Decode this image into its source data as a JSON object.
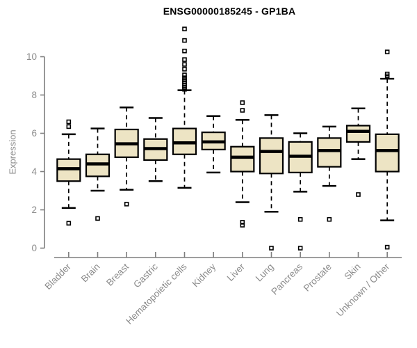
{
  "chart_data": {
    "type": "boxplot",
    "title": "ENSG00000185245 - GP1BA",
    "ylabel": "Expression",
    "xlabel": "",
    "ylim": [
      0,
      10
    ],
    "yticks": [
      0,
      2,
      4,
      6,
      8,
      10
    ],
    "grid": false,
    "legend_position": "none",
    "colors": {
      "box_fill": "#ede4c4",
      "box_border": "#000000",
      "median": "#000000",
      "whisker": "#000000",
      "outlier": "#000000",
      "axis_line": "#7f7f7f",
      "axis_text": "#8b8b8b",
      "title_text": "#000000",
      "background": "#ffffff"
    },
    "categories": [
      "Bladder",
      "Brain",
      "Breast",
      "Gastric",
      "Hematopoietic cells",
      "Kidney",
      "Liver",
      "Lung",
      "Pancreas",
      "Prostate",
      "Skin",
      "Unknown / Other"
    ],
    "series": [
      {
        "category": "Bladder",
        "whisker_low": 2.1,
        "q1": 3.5,
        "median": 4.15,
        "q3": 4.65,
        "whisker_high": 5.95,
        "outliers": [
          6.6,
          6.35,
          1.3
        ]
      },
      {
        "category": "Brain",
        "whisker_low": 3.0,
        "q1": 3.75,
        "median": 4.4,
        "q3": 4.9,
        "whisker_high": 6.25,
        "outliers": [
          1.55
        ]
      },
      {
        "category": "Breast",
        "whisker_low": 3.05,
        "q1": 4.75,
        "median": 5.45,
        "q3": 6.2,
        "whisker_high": 7.35,
        "outliers": [
          2.3
        ]
      },
      {
        "category": "Gastric",
        "whisker_low": 3.5,
        "q1": 4.6,
        "median": 5.2,
        "q3": 5.7,
        "whisker_high": 6.8,
        "outliers": []
      },
      {
        "category": "Hematopoietic cells",
        "whisker_low": 3.15,
        "q1": 4.9,
        "median": 5.5,
        "q3": 6.25,
        "whisker_high": 8.25,
        "outliers": [
          11.45,
          10.85,
          10.3,
          9.85,
          9.6,
          9.35,
          9.05,
          8.9,
          8.8,
          8.7,
          8.6,
          8.5,
          8.4,
          8.3
        ]
      },
      {
        "category": "Kidney",
        "whisker_low": 3.95,
        "q1": 5.15,
        "median": 5.55,
        "q3": 6.05,
        "whisker_high": 6.9,
        "outliers": []
      },
      {
        "category": "Liver",
        "whisker_low": 2.4,
        "q1": 4.0,
        "median": 4.75,
        "q3": 5.3,
        "whisker_high": 6.7,
        "outliers": [
          7.6,
          7.2,
          1.35,
          1.2
        ]
      },
      {
        "category": "Lung",
        "whisker_low": 1.9,
        "q1": 3.9,
        "median": 5.05,
        "q3": 5.75,
        "whisker_high": 6.95,
        "outliers": [
          0.0
        ]
      },
      {
        "category": "Pancreas",
        "whisker_low": 2.95,
        "q1": 3.95,
        "median": 4.8,
        "q3": 5.55,
        "whisker_high": 6.0,
        "outliers": [
          1.5,
          0.0
        ]
      },
      {
        "category": "Prostate",
        "whisker_low": 3.25,
        "q1": 4.25,
        "median": 5.1,
        "q3": 5.75,
        "whisker_high": 6.35,
        "outliers": [
          1.5
        ]
      },
      {
        "category": "Skin",
        "whisker_low": 4.65,
        "q1": 5.55,
        "median": 6.1,
        "q3": 6.4,
        "whisker_high": 7.3,
        "outliers": [
          2.8
        ]
      },
      {
        "category": "Unknown / Other",
        "whisker_low": 1.45,
        "q1": 4.0,
        "median": 5.1,
        "q3": 5.95,
        "whisker_high": 8.85,
        "outliers": [
          10.25,
          9.1,
          9.0,
          0.05
        ]
      }
    ]
  }
}
